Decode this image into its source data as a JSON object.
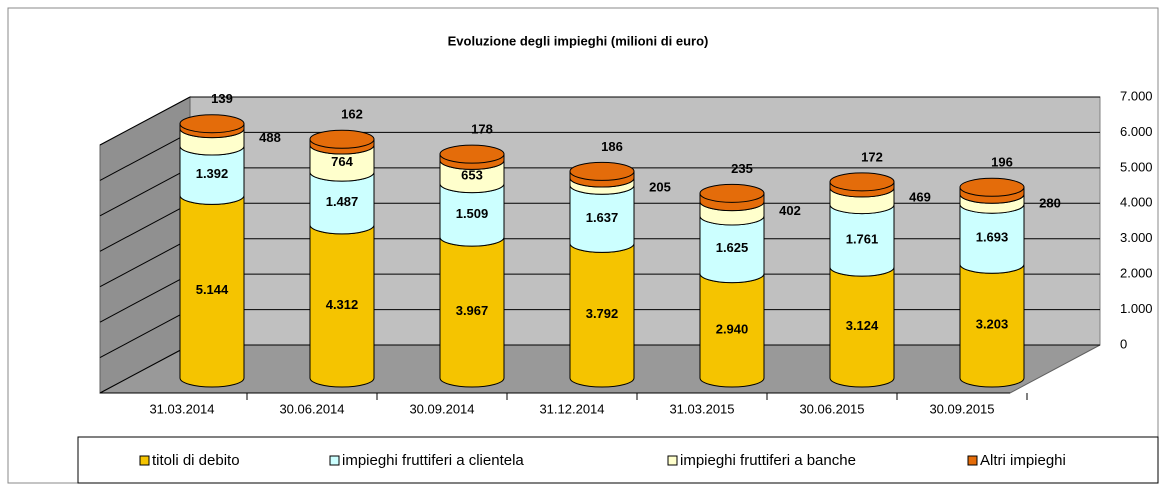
{
  "chart_data": {
    "type": "stacked-cylinder",
    "title": "Evoluzione degli impieghi (milioni di euro)",
    "categories": [
      "31.03.2014",
      "30.06.2014",
      "30.09.2014",
      "31.12.2014",
      "31.03.2015",
      "30.06.2015",
      "30.09.2015"
    ],
    "series": [
      {
        "name": "titoli di debito",
        "color": "#f5c400",
        "values": [
          5144,
          4312,
          3967,
          3792,
          2940,
          3124,
          3203
        ],
        "value_labels": [
          "5.144",
          "4.312",
          "3.967",
          "3.792",
          "2.940",
          "3.124",
          "3.203"
        ]
      },
      {
        "name": "impieghi fruttiferi a clientela",
        "color": "#ccffff",
        "values": [
          1392,
          1487,
          1509,
          1637,
          1625,
          1761,
          1693
        ],
        "value_labels": [
          "1.392",
          "1.487",
          "1.509",
          "1.637",
          "1.625",
          "1.761",
          "1.693"
        ]
      },
      {
        "name": "impieghi fruttiferi a banche",
        "color": "#ffffcc",
        "values": [
          488,
          764,
          653,
          205,
          402,
          469,
          280
        ]
      },
      {
        "name": "Altri impieghi",
        "color": "#e46c0a",
        "values": [
          139,
          162,
          178,
          186,
          235,
          172,
          196
        ]
      }
    ],
    "ylim": [
      0,
      7000
    ],
    "yticks": [
      0,
      {
        "value": 1000,
        "label": "1.000"
      },
      {
        "value": 2000,
        "label": "2.000"
      },
      {
        "value": 3000,
        "label": "3.000"
      },
      {
        "value": 4000,
        "label": "4.000"
      },
      {
        "value": 5000,
        "label": "5.000"
      },
      {
        "value": 6000,
        "label": "6.000"
      },
      {
        "value": 7000,
        "label": "7.000"
      }
    ],
    "grid": true,
    "legend": "bottom"
  }
}
